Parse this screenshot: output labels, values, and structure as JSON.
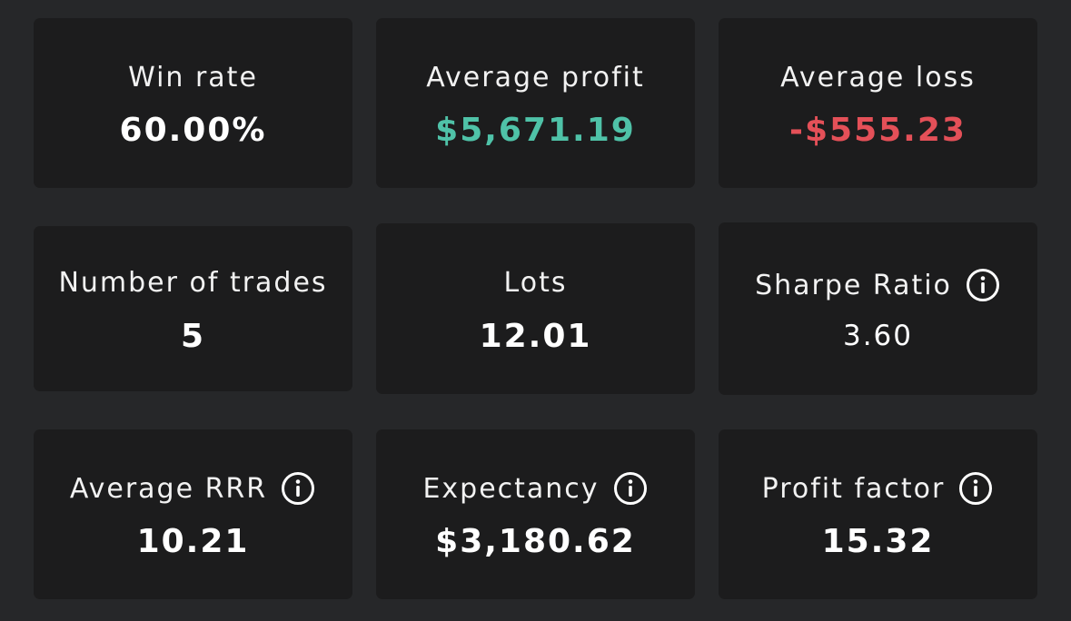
{
  "stats": [
    {
      "label": "Win rate",
      "value": "60.00%",
      "info": false,
      "color": "#ffffff"
    },
    {
      "label": "Average profit",
      "value": "$5,671.19",
      "info": false,
      "color": "#4fc2a8"
    },
    {
      "label": "Average loss",
      "value": "-$555.23",
      "info": false,
      "color": "#e45058"
    },
    {
      "label": "Number of trades",
      "value": "5",
      "info": false,
      "color": "#ffffff"
    },
    {
      "label": "Lots",
      "value": "12.01",
      "info": false,
      "color": "#ffffff"
    },
    {
      "label": "Sharpe Ratio",
      "value": "3.60",
      "info": true,
      "color": "#ffffff"
    },
    {
      "label": "Average RRR",
      "value": "10.21",
      "info": true,
      "color": "#ffffff"
    },
    {
      "label": "Expectancy",
      "value": "$3,180.62",
      "info": true,
      "color": "#ffffff"
    },
    {
      "label": "Profit factor",
      "value": "15.32",
      "info": true,
      "color": "#ffffff"
    }
  ],
  "icons": {
    "info": "info-circle-icon"
  }
}
